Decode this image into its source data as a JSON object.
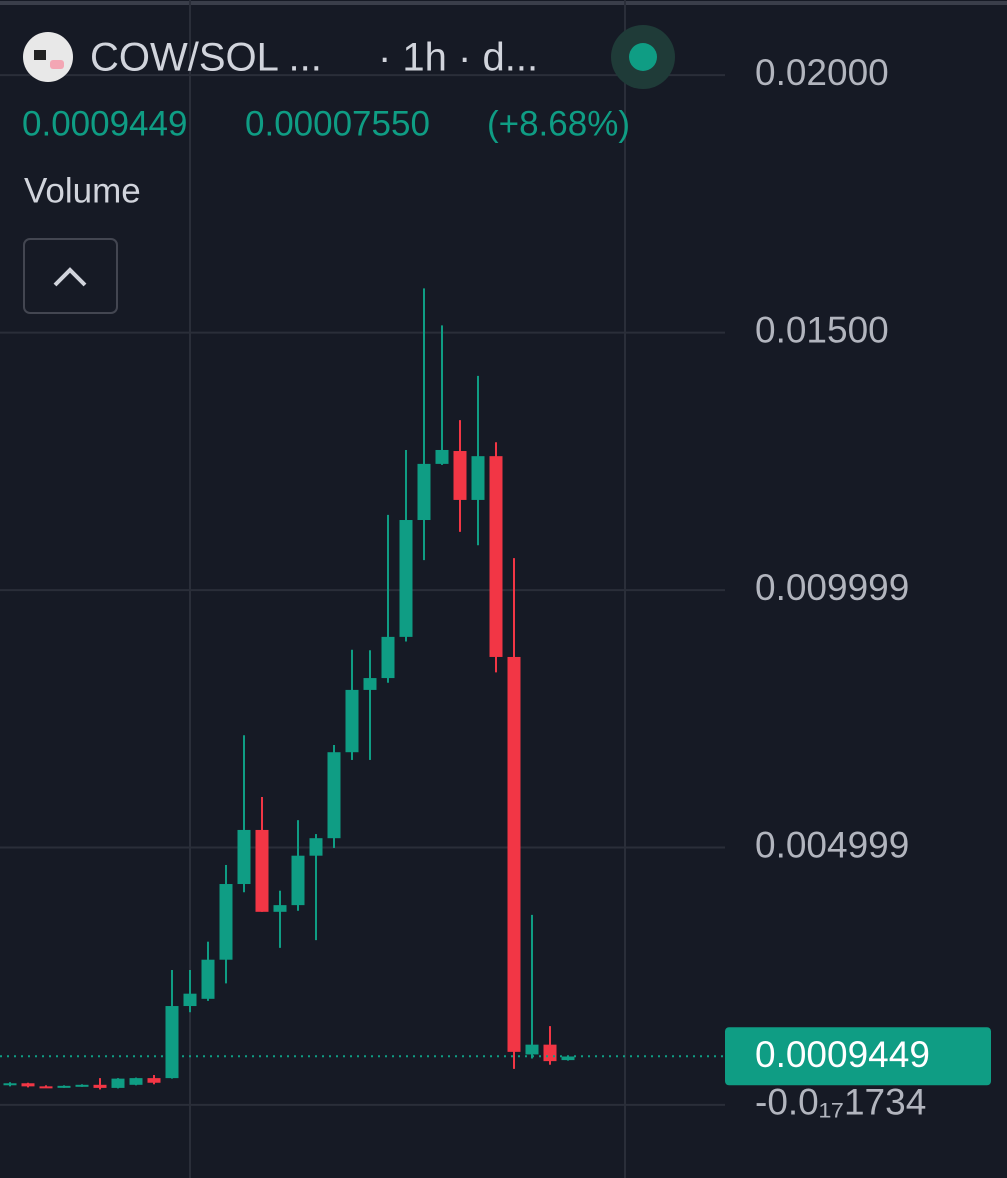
{
  "chart_data": {
    "type": "candlestick",
    "title": "COW/SOL ...",
    "interval": "· 1h · d...",
    "last_price": 0.0009449,
    "change": "0.00007550",
    "change_pct": "(+8.68%)",
    "volume_label": "Volume",
    "up_color": "#0f9d84",
    "down_color": "#f23645",
    "ylim": [
      -0.00142,
      0.02146
    ],
    "yticks": [
      {
        "value": 0.02,
        "label": "0.02000"
      },
      {
        "value": 0.015,
        "label": "0.01500"
      },
      0.009999,
      0.004999,
      {
        "value": -1.734e-18,
        "label": "-0.0₁₇1734"
      }
    ],
    "grid": true,
    "open": [
      0.0004,
      0.00042,
      0.00036,
      0.00035,
      0.00037,
      0.00039,
      0.00033,
      0.00039,
      0.00052,
      0.00052,
      0.00192,
      0.00206,
      0.00282,
      0.00429,
      0.00534,
      0.00375,
      0.00388,
      0.00484,
      0.00518,
      0.00685,
      0.00806,
      0.00829,
      0.00909,
      0.01136,
      0.01245,
      0.0127,
      0.01175,
      0.0126,
      0.0087,
      0.00098,
      0.00117,
      0.00087
    ],
    "high": [
      0.00044,
      0.00043,
      0.00038,
      0.00038,
      0.0004,
      0.00052,
      0.00052,
      0.00053,
      0.00058,
      0.00262,
      0.00262,
      0.00317,
      0.00466,
      0.00718,
      0.00598,
      0.00416,
      0.00553,
      0.00526,
      0.00699,
      0.00884,
      0.00883,
      0.01146,
      0.01272,
      0.01586,
      0.01514,
      0.0133,
      0.01416,
      0.01287,
      0.01062,
      0.00369,
      0.00153,
      0.00095
    ],
    "low": [
      0.00036,
      0.00034,
      0.00033,
      0.00033,
      0.00035,
      0.0003,
      0.00032,
      0.00038,
      0.0004,
      0.00051,
      0.0018,
      0.00202,
      0.00236,
      0.00413,
      0.00375,
      0.00305,
      0.00377,
      0.0032,
      0.00499,
      0.0067,
      0.0067,
      0.0082,
      0.009,
      0.01058,
      0.01243,
      0.01113,
      0.01087,
      0.0084,
      0.0007,
      0.0009,
      0.00078,
      0.00086
    ],
    "close": [
      0.00042,
      0.00036,
      0.00035,
      0.00037,
      0.00039,
      0.00033,
      0.00051,
      0.00052,
      0.00043,
      0.00192,
      0.00216,
      0.00282,
      0.00429,
      0.00534,
      0.00375,
      0.00388,
      0.00484,
      0.00518,
      0.00685,
      0.00806,
      0.00829,
      0.00909,
      0.01136,
      0.01245,
      0.01272,
      0.01175,
      0.0126,
      0.0087,
      0.00103,
      0.00117,
      0.00085,
      0.00094
    ]
  }
}
